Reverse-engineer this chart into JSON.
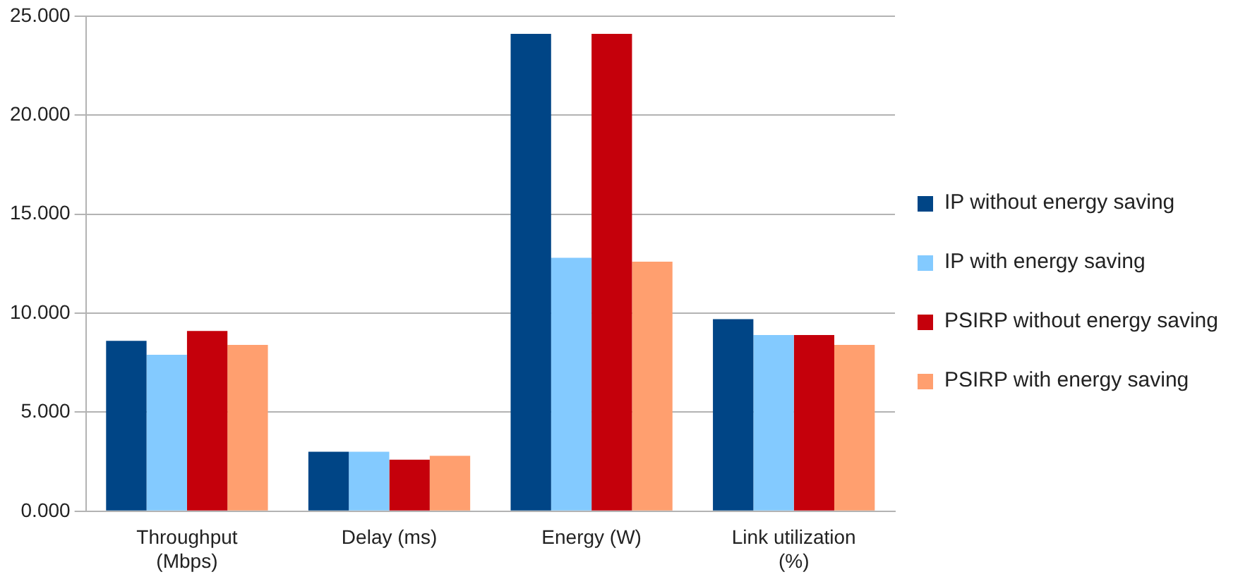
{
  "chart_data": {
    "type": "bar",
    "categories": [
      "Throughput (Mbps)",
      "Delay (ms)",
      "Energy (W)",
      "Link utilization (%)"
    ],
    "series": [
      {
        "name": "IP without energy saving",
        "color": "#004586",
        "values": [
          8.6,
          3.0,
          24.1,
          9.7
        ]
      },
      {
        "name": "IP with energy saving",
        "color": "#83caff",
        "values": [
          7.9,
          3.0,
          12.8,
          8.9
        ]
      },
      {
        "name": "PSIRP without energy saving",
        "color": "#c5000b",
        "values": [
          9.1,
          2.6,
          24.1,
          8.9
        ]
      },
      {
        "name": "PSIRP with energy saving",
        "color": "#ff9f6f",
        "values": [
          8.4,
          2.8,
          12.6,
          8.4
        ]
      }
    ],
    "ylim": [
      0,
      25
    ],
    "yticks": [
      {
        "value": 0,
        "label": "0.000"
      },
      {
        "value": 5,
        "label": "5.000"
      },
      {
        "value": 10,
        "label": "10.000"
      },
      {
        "value": 15,
        "label": "15.000"
      },
      {
        "value": 20,
        "label": "20.000"
      },
      {
        "value": 25,
        "label": "25.000"
      }
    ],
    "grid": "y",
    "legend": "right"
  }
}
